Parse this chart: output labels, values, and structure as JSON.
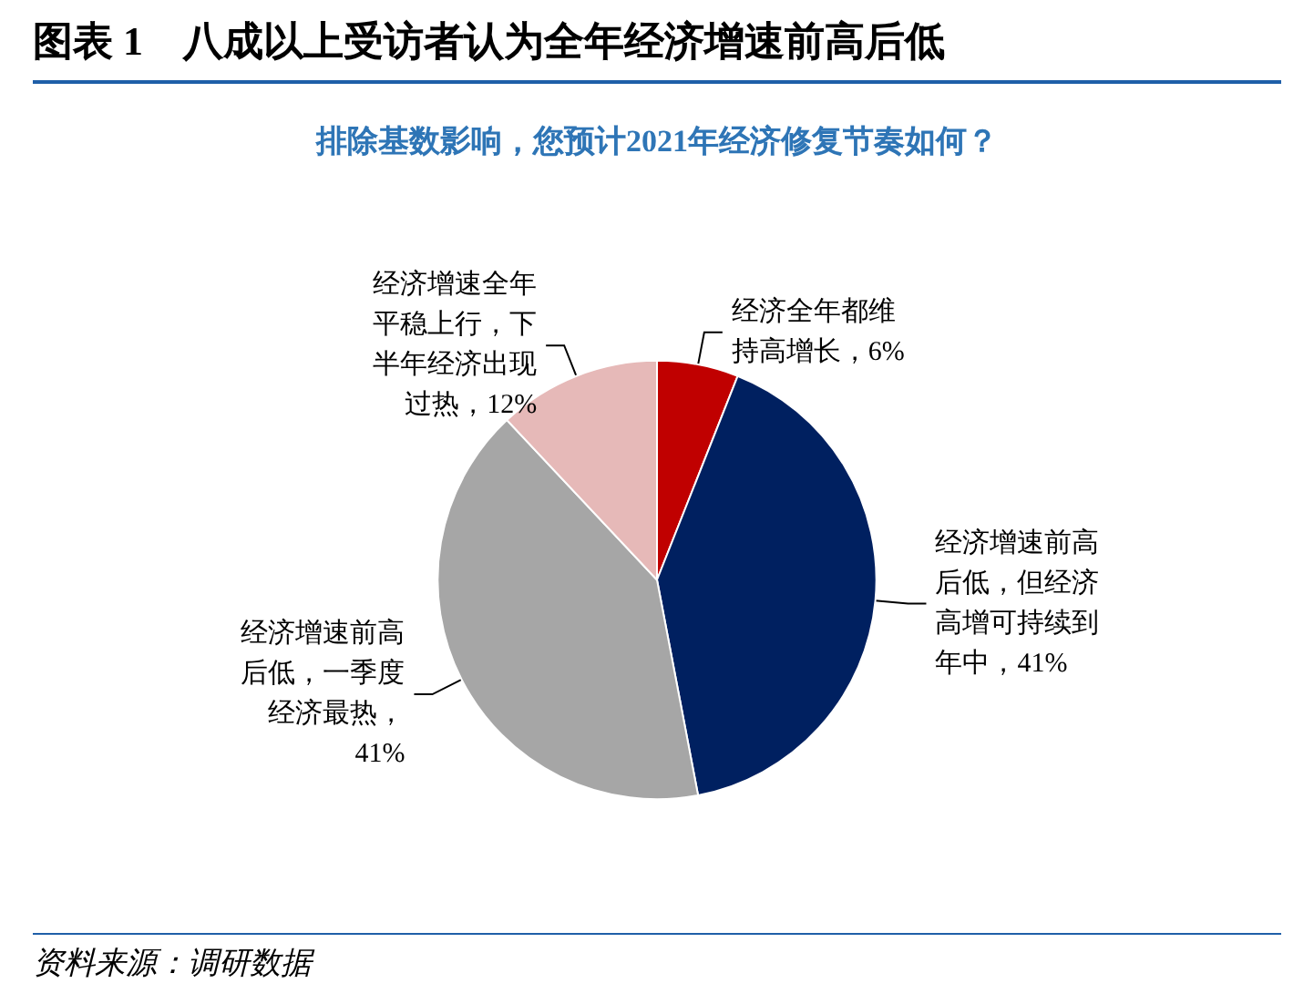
{
  "chart_data": {
    "type": "pie",
    "title": "图表 1　八成以上受访者认为全年经济增速前高后低",
    "subtitle": "排除基数影响，您预计2021年经济修复节奏如何？",
    "categories": [
      "经济全年都维持高增长，6%",
      "经济增速前高后低，但经济高增可持续到年中，41%",
      "经济增速前高后低，一季度经济最热，41%",
      "经济增速全年平稳上行，下半年经济出现过热，12%"
    ],
    "values": [
      6,
      41,
      41,
      12
    ],
    "colors": [
      "#c00000",
      "#002060",
      "#a6a6a6",
      "#e6b9b8"
    ],
    "annotations": [
      "资料来源：调研数据"
    ]
  }
}
